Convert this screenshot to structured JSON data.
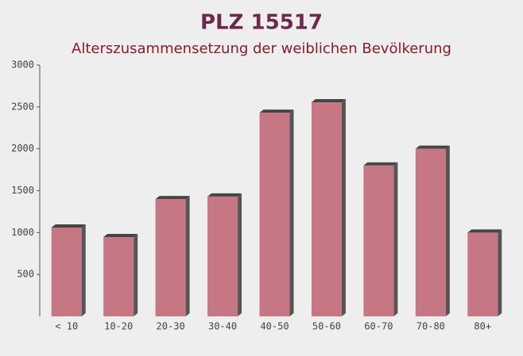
{
  "chart_data": {
    "type": "bar",
    "title": "PLZ 15517",
    "subtitle": "Alterszusammensetzung der weiblichen Bevölkerung",
    "categories": [
      "< 10",
      "10-20",
      "20-30",
      "30-40",
      "40-50",
      "50-60",
      "60-70",
      "70-80",
      "80+"
    ],
    "values": [
      1060,
      946,
      1400,
      1430,
      2430,
      2555,
      1800,
      2000,
      1000
    ],
    "color": "#c06070",
    "ylim": [
      0,
      3000
    ],
    "yticks": [
      500,
      1000,
      1500,
      2000,
      2500,
      3000
    ],
    "grid": false
  }
}
